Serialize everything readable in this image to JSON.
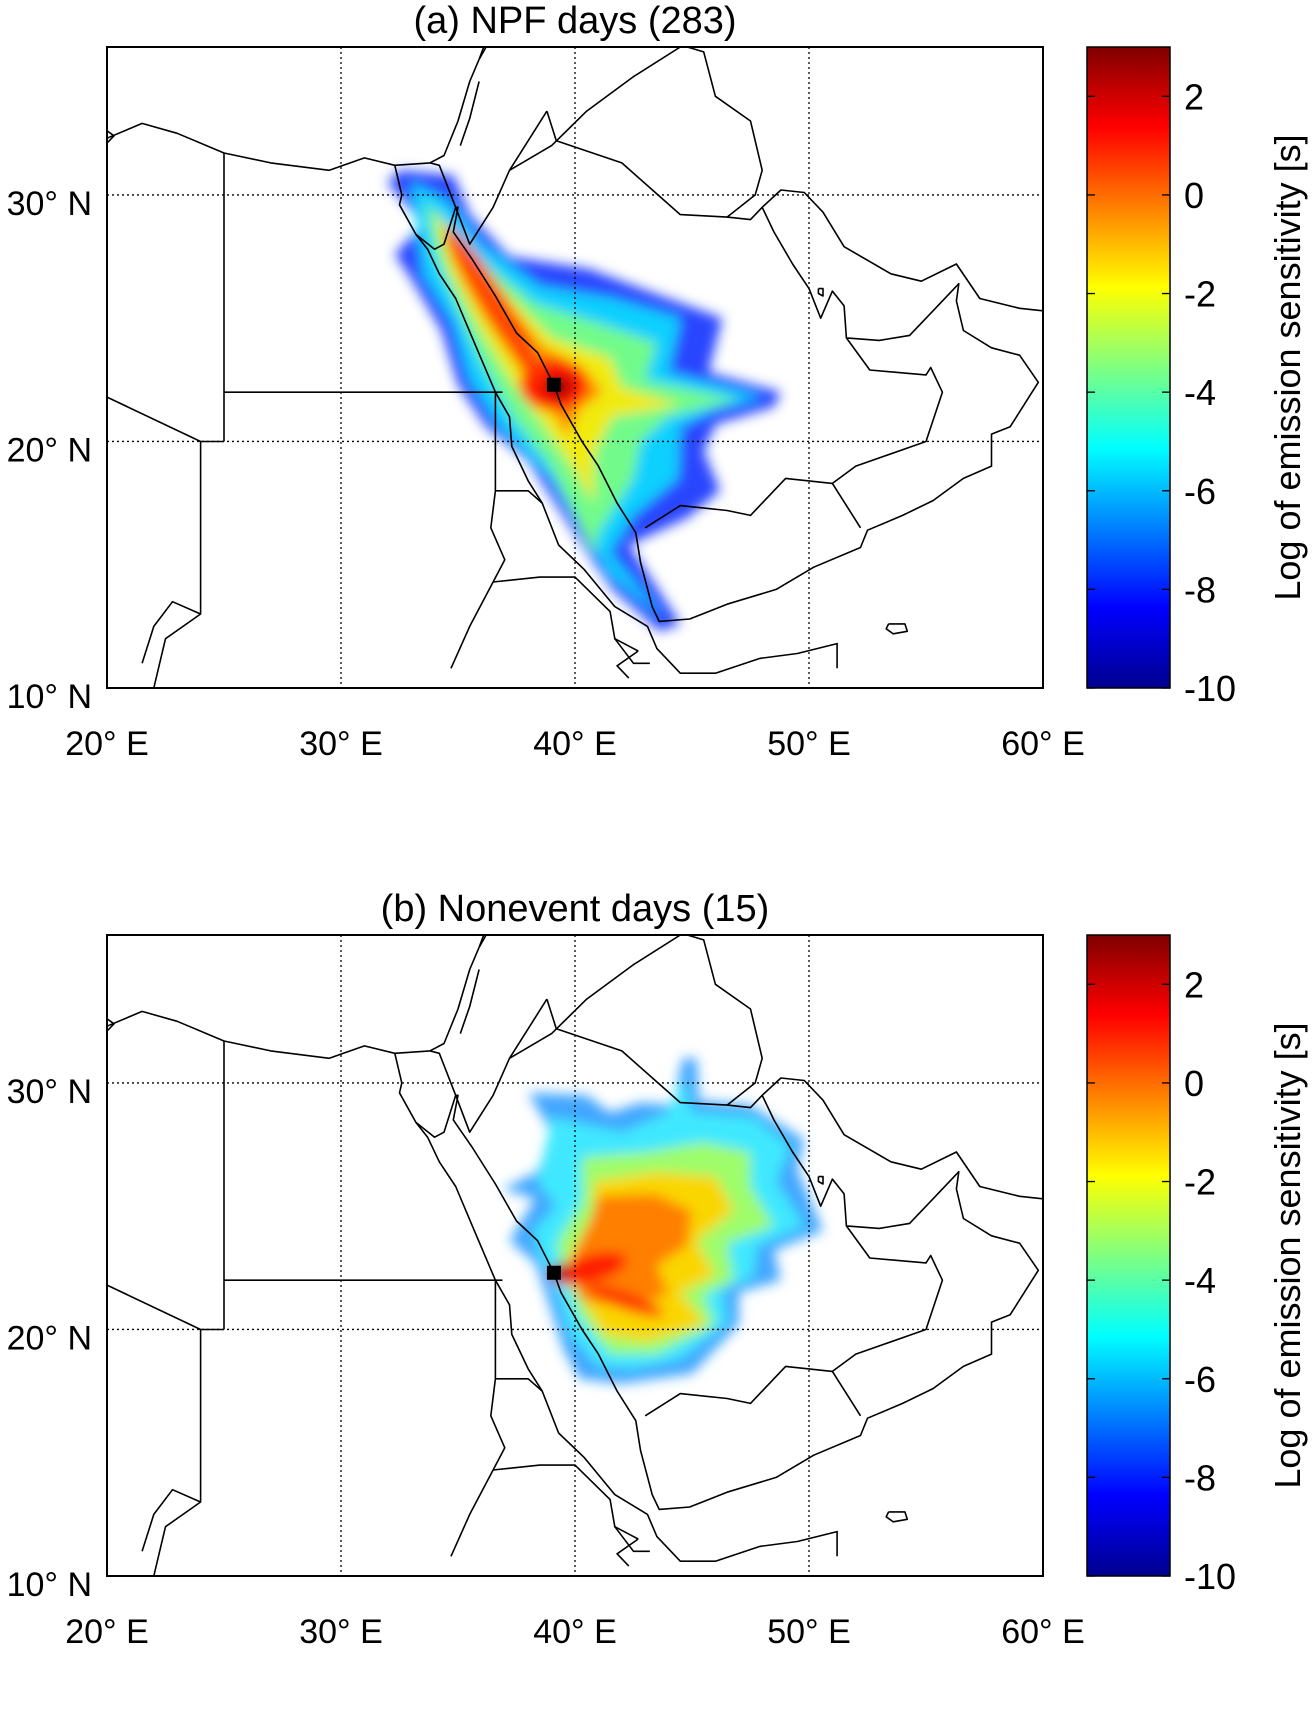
{
  "panels": [
    {
      "id": "a",
      "title": "(a) NPF days (283)",
      "pattern": "npf"
    },
    {
      "id": "b",
      "title": "(b) Nonevent days (15)",
      "pattern": "nonevent"
    }
  ],
  "map": {
    "lon_range": [
      20,
      60
    ],
    "lat_range": [
      10,
      36
    ],
    "lon_ticks": [
      {
        "value": 20,
        "label": "20° E"
      },
      {
        "value": 30,
        "label": "30° E"
      },
      {
        "value": 40,
        "label": "40° E"
      },
      {
        "value": 50,
        "label": "50° E"
      },
      {
        "value": 60,
        "label": "60° E"
      }
    ],
    "lat_ticks": [
      {
        "value": 10,
        "label": "10° N"
      },
      {
        "value": 20,
        "label": "20° N"
      },
      {
        "value": 30,
        "label": "30° N"
      }
    ],
    "gridlines": "dotted",
    "station_marker": {
      "lon": 39.1,
      "lat": 22.3,
      "shape": "black-square"
    }
  },
  "colorbar": {
    "label": "Log of emission sensitivity [s]",
    "range": [
      -10,
      3
    ],
    "ticks": [
      {
        "value": 2,
        "label": "2"
      },
      {
        "value": 0,
        "label": "0"
      },
      {
        "value": -2,
        "label": "-2"
      },
      {
        "value": -4,
        "label": "-4"
      },
      {
        "value": -6,
        "label": "-6"
      },
      {
        "value": -8,
        "label": "-8"
      },
      {
        "value": -10,
        "label": "-10"
      }
    ],
    "colormap": "jet",
    "colors": [
      "#00008f",
      "#0000ff",
      "#0080ff",
      "#00ffff",
      "#80ff80",
      "#ffff00",
      "#ff8000",
      "#ff0000",
      "#800000"
    ]
  }
}
